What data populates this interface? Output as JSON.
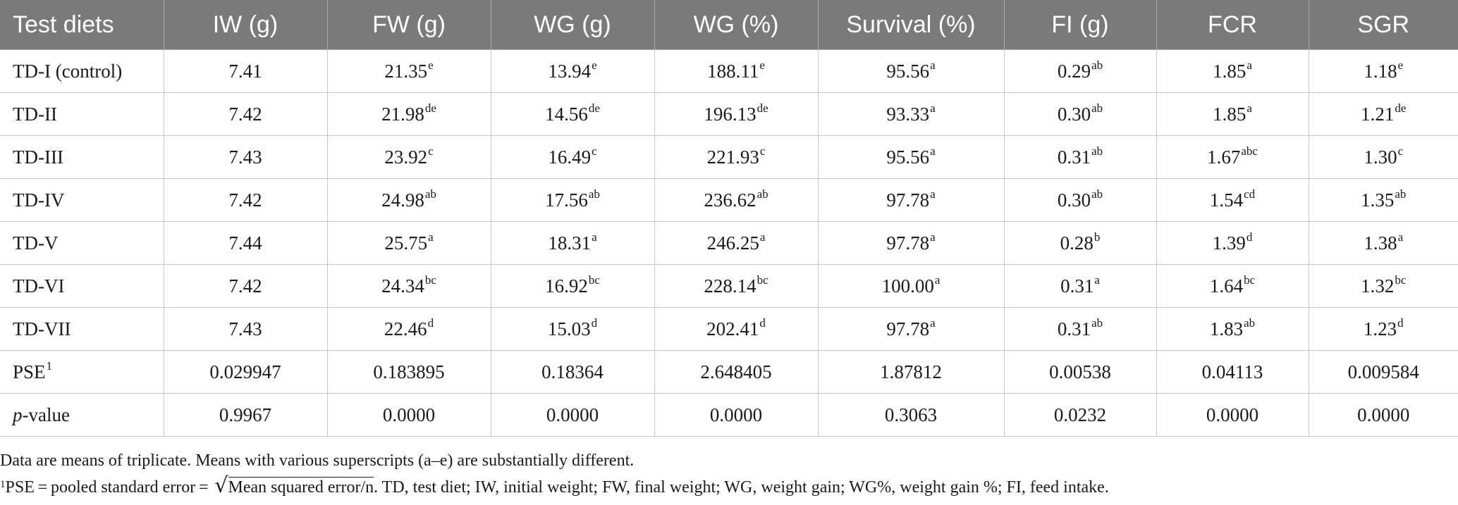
{
  "table": {
    "headers": [
      "Test diets",
      "IW (g)",
      "FW (g)",
      "WG (g)",
      "WG (%)",
      "Survival (%)",
      "FI (g)",
      "FCR",
      "SGR"
    ],
    "rows": [
      {
        "diet": "TD-I (control)",
        "iw": "7.41",
        "fw": {
          "value": "21.35",
          "sup": "e"
        },
        "wg": {
          "value": "13.94",
          "sup": "e"
        },
        "wgp": {
          "value": "188.11",
          "sup": "e"
        },
        "survival": {
          "value": "95.56",
          "sup": "a"
        },
        "fi": {
          "value": "0.29",
          "sup": "ab"
        },
        "fcr": {
          "value": "1.85",
          "sup": "a"
        },
        "sgr": {
          "value": "1.18",
          "sup": "e"
        }
      },
      {
        "diet": "TD-II",
        "iw": "7.42",
        "fw": {
          "value": "21.98",
          "sup": "de"
        },
        "wg": {
          "value": "14.56",
          "sup": "de"
        },
        "wgp": {
          "value": "196.13",
          "sup": "de"
        },
        "survival": {
          "value": "93.33",
          "sup": "a"
        },
        "fi": {
          "value": "0.30",
          "sup": "ab"
        },
        "fcr": {
          "value": "1.85",
          "sup": "a"
        },
        "sgr": {
          "value": "1.21",
          "sup": "de"
        }
      },
      {
        "diet": "TD-III",
        "iw": "7.43",
        "fw": {
          "value": "23.92",
          "sup": "c"
        },
        "wg": {
          "value": "16.49",
          "sup": "c"
        },
        "wgp": {
          "value": "221.93",
          "sup": "c"
        },
        "survival": {
          "value": "95.56",
          "sup": "a"
        },
        "fi": {
          "value": "0.31",
          "sup": "ab"
        },
        "fcr": {
          "value": "1.67",
          "sup": "abc"
        },
        "sgr": {
          "value": "1.30",
          "sup": "c"
        }
      },
      {
        "diet": "TD-IV",
        "iw": "7.42",
        "fw": {
          "value": "24.98",
          "sup": "ab"
        },
        "wg": {
          "value": "17.56",
          "sup": "ab"
        },
        "wgp": {
          "value": "236.62",
          "sup": "ab"
        },
        "survival": {
          "value": "97.78",
          "sup": "a"
        },
        "fi": {
          "value": "0.30",
          "sup": "ab"
        },
        "fcr": {
          "value": "1.54",
          "sup": "cd"
        },
        "sgr": {
          "value": "1.35",
          "sup": "ab"
        }
      },
      {
        "diet": "TD-V",
        "iw": "7.44",
        "fw": {
          "value": "25.75",
          "sup": "a"
        },
        "wg": {
          "value": "18.31",
          "sup": "a"
        },
        "wgp": {
          "value": "246.25",
          "sup": "a"
        },
        "survival": {
          "value": "97.78",
          "sup": "a"
        },
        "fi": {
          "value": "0.28",
          "sup": "b"
        },
        "fcr": {
          "value": "1.39",
          "sup": "d"
        },
        "sgr": {
          "value": "1.38",
          "sup": "a"
        }
      },
      {
        "diet": "TD-VI",
        "iw": "7.42",
        "fw": {
          "value": "24.34",
          "sup": "bc"
        },
        "wg": {
          "value": "16.92",
          "sup": "bc"
        },
        "wgp": {
          "value": "228.14",
          "sup": "bc"
        },
        "survival": {
          "value": "100.00",
          "sup": "a"
        },
        "fi": {
          "value": "0.31",
          "sup": "a"
        },
        "fcr": {
          "value": "1.64",
          "sup": "bc"
        },
        "sgr": {
          "value": "1.32",
          "sup": "bc"
        }
      },
      {
        "diet": "TD-VII",
        "iw": "7.43",
        "fw": {
          "value": "22.46",
          "sup": "d"
        },
        "wg": {
          "value": "15.03",
          "sup": "d"
        },
        "wgp": {
          "value": "202.41",
          "sup": "d"
        },
        "survival": {
          "value": "97.78",
          "sup": "a"
        },
        "fi": {
          "value": "0.31",
          "sup": "ab"
        },
        "fcr": {
          "value": "1.83",
          "sup": "ab"
        },
        "sgr": {
          "value": "1.23",
          "sup": "d"
        }
      }
    ],
    "pse_row": {
      "label": "PSE",
      "label_sup": "1",
      "values": [
        "0.029947",
        "0.183895",
        "0.18364",
        "2.648405",
        "1.87812",
        "0.00538",
        "0.04113",
        "0.009584"
      ]
    },
    "pvalue_row": {
      "label_italic": "p",
      "label_rest": "-value",
      "values": [
        "0.9967",
        "0.0000",
        "0.0000",
        "0.0000",
        "0.3063",
        "0.0232",
        "0.0000",
        "0.0000"
      ]
    }
  },
  "footnotes": {
    "line1": "Data are means of triplicate. Means with various superscripts (a–e) are substantially different.",
    "line2_sup": "1",
    "line2_prefix": "PSE = pooled standard error = ",
    "line2_sqrt_symbol": "√",
    "line2_sqrt_body": "Mean squared error/n",
    "line2_suffix": ". TD, test diet; IW, initial weight; FW, final weight; WG, weight gain; WG%, weight gain %; FI, feed intake."
  }
}
